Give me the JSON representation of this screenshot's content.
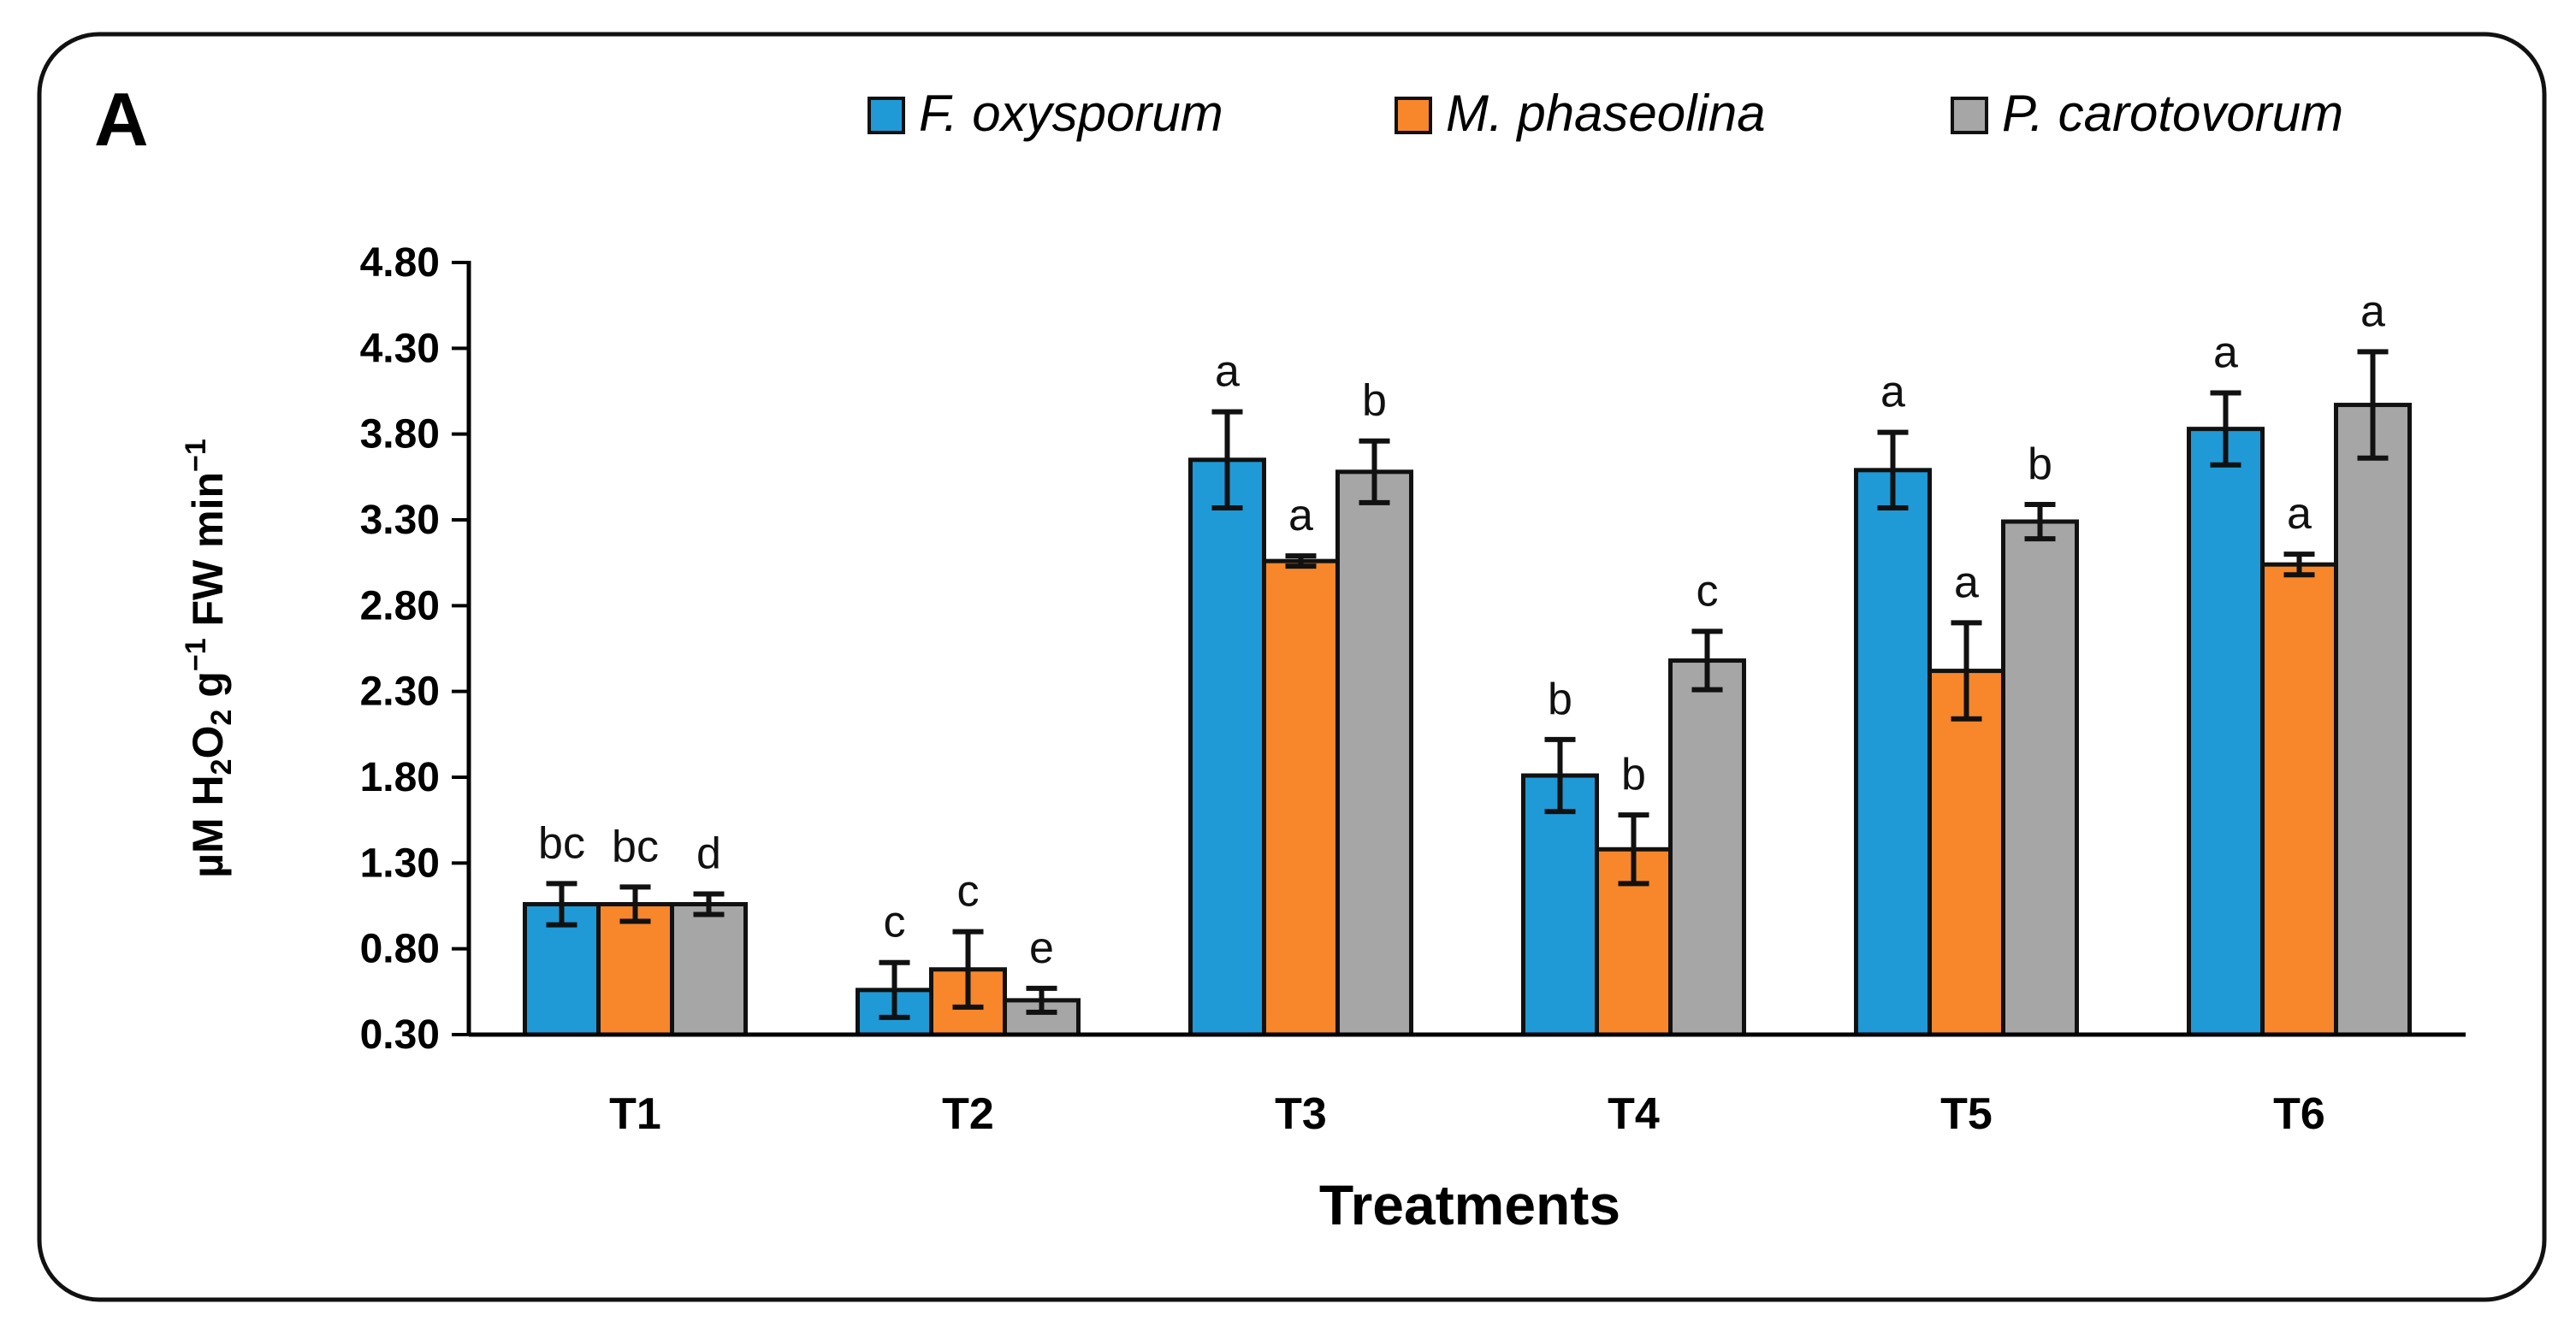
{
  "panel": {
    "label": "A"
  },
  "chart_data": {
    "type": "bar",
    "title": "",
    "xlabel": "Treatments",
    "ylabel": {
      "prefix": "µM H",
      "sub1": "2",
      "mid1": "O",
      "sub2": "2",
      "mid2": " g",
      "sup1": "−1",
      "mid3": " FW min",
      "sup2": "−1"
    },
    "categories": [
      "T1",
      "T2",
      "T3",
      "T4",
      "T5",
      "T6"
    ],
    "ylim": [
      0.3,
      4.8
    ],
    "yticks": [
      "0.30",
      "0.80",
      "1.30",
      "1.80",
      "2.30",
      "2.80",
      "3.30",
      "3.80",
      "4.30",
      "4.80"
    ],
    "grid": false,
    "legend_position": "top",
    "series": [
      {
        "name": "F. oxysporum",
        "color": "#1f9ad6",
        "values": [
          1.06,
          0.56,
          3.65,
          1.81,
          3.59,
          3.83
        ],
        "errors": [
          0.12,
          0.16,
          0.28,
          0.21,
          0.22,
          0.21
        ],
        "letters": [
          "bc",
          "c",
          "a",
          "b",
          "a",
          "a"
        ]
      },
      {
        "name": "M. phaseolina",
        "color": "#f7872a",
        "values": [
          1.06,
          0.68,
          3.06,
          1.38,
          2.42,
          3.04
        ],
        "errors": [
          0.1,
          0.22,
          0.03,
          0.2,
          0.28,
          0.06
        ],
        "letters": [
          "bc",
          "c",
          "a",
          "b",
          "a",
          "a"
        ]
      },
      {
        "name": "P. carotovorum",
        "color": "#a6a6a6",
        "values": [
          1.06,
          0.5,
          3.58,
          2.48,
          3.29,
          3.97
        ],
        "errors": [
          0.06,
          0.07,
          0.18,
          0.17,
          0.1,
          0.31
        ],
        "letters": [
          "d",
          "e",
          "b",
          "c",
          "b",
          "a"
        ]
      }
    ]
  }
}
